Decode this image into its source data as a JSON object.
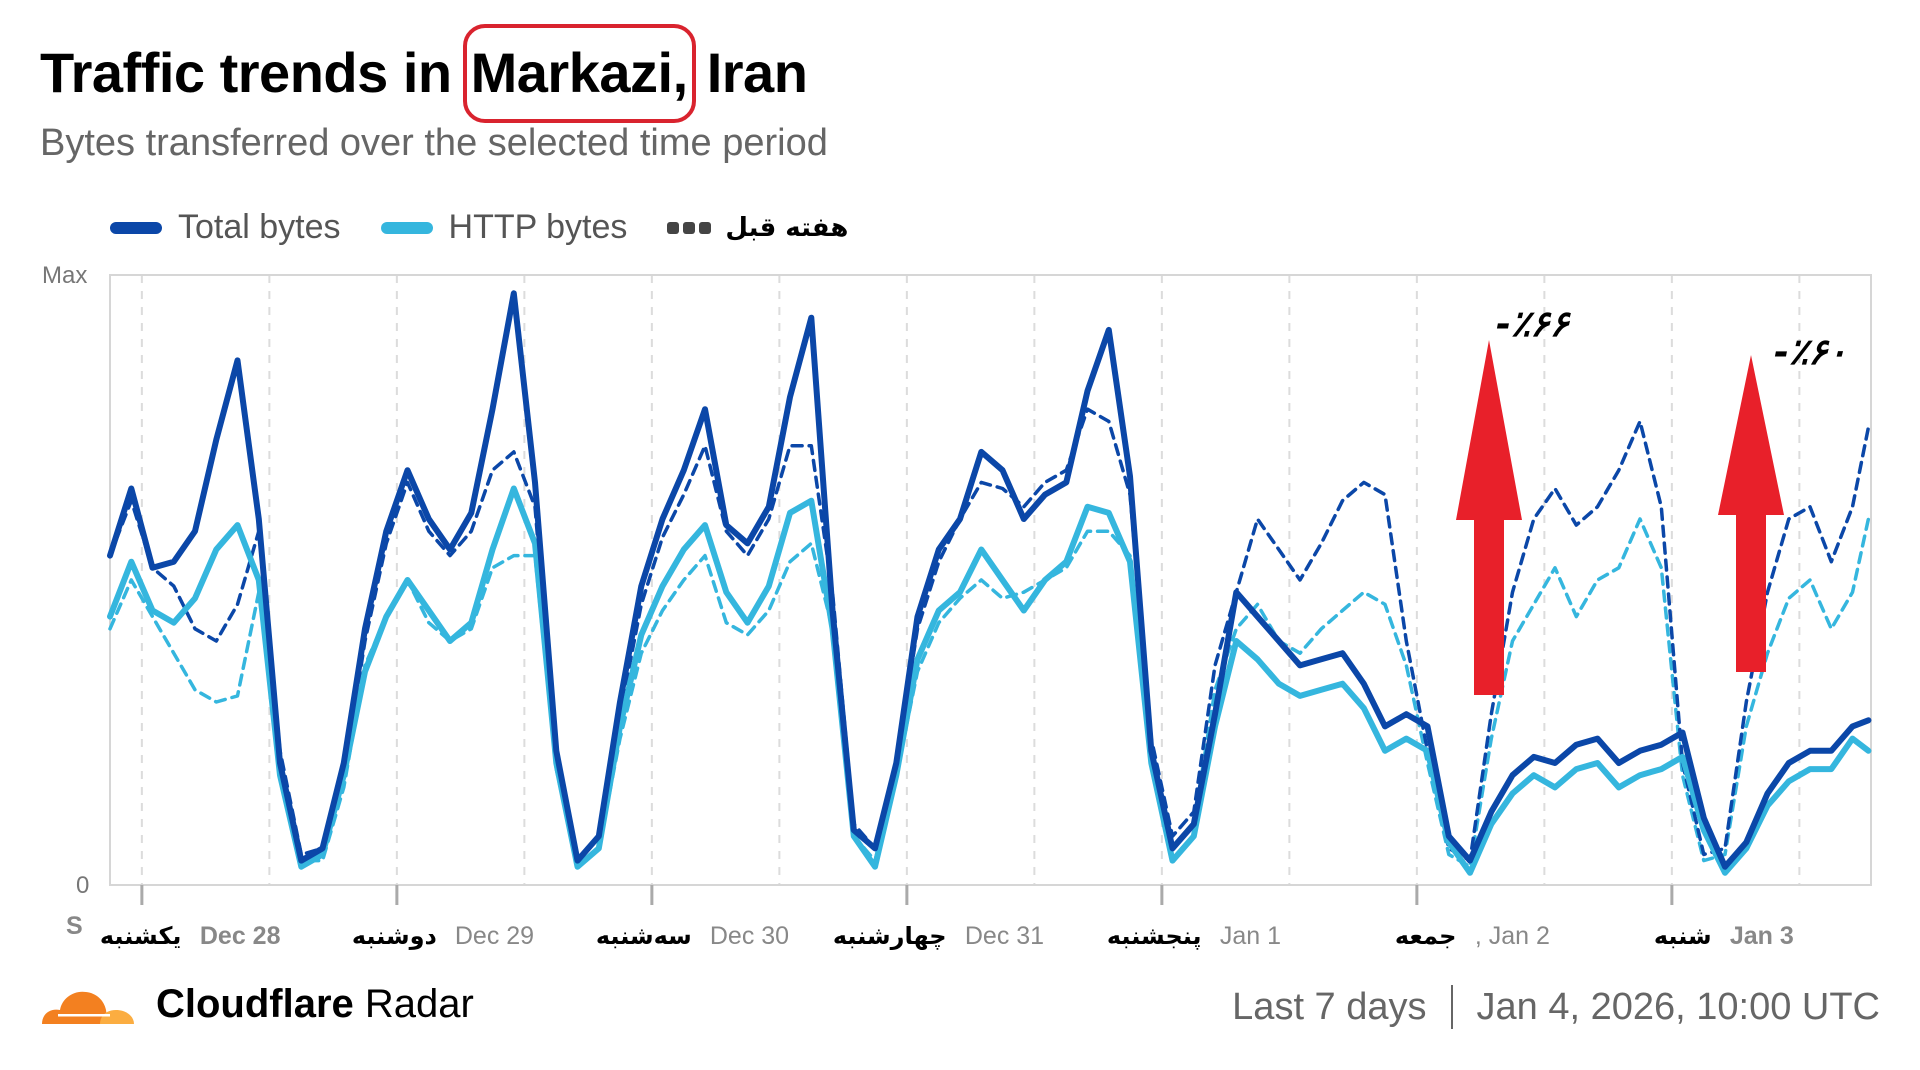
{
  "header": {
    "title_prefix": "Traffic trends in ",
    "title_highlight": "Markazi,",
    "title_suffix": " Iran",
    "subtitle": "Bytes transferred over the selected time period"
  },
  "legend": [
    {
      "label": "Total bytes",
      "color": "#0b47a8",
      "style": "solid"
    },
    {
      "label": "HTTP bytes",
      "color": "#35b6de",
      "style": "solid"
    },
    {
      "label": "هفته قبل",
      "color": "#444444",
      "style": "dashed"
    }
  ],
  "axes": {
    "y_max_label": "Max",
    "y_min_label": "0",
    "x_start_label": "S"
  },
  "x_labels": [
    {
      "fa": "یکشنبه",
      "en": "Dec 28"
    },
    {
      "fa": "دوشنبه",
      "en": "Dec 29"
    },
    {
      "fa": "سه‌شنبه",
      "en": "Dec 30"
    },
    {
      "fa": "چهارشنبه",
      "en": "Dec 31"
    },
    {
      "fa": "پنجشنبه",
      "en": "Jan 1"
    },
    {
      "fa": "جمعه",
      "en": ", Jan 2"
    },
    {
      "fa": "شنبه",
      "en": "Jan 3"
    }
  ],
  "annotations": [
    {
      "text": "-٪۶۶",
      "target": "Jan 2 peak"
    },
    {
      "text": "-٪۶۰",
      "target": "Jan 3 peak"
    }
  ],
  "footer": {
    "brand_bold": "Cloudflare",
    "brand_light": " Radar",
    "range": "Last 7 days",
    "timestamp": "Jan 4, 2026, 10:00 UTC"
  },
  "colors": {
    "total": "#0b47a8",
    "http": "#35b6de",
    "prev_total": "#0b47a8",
    "prev_http": "#35b6de",
    "arrow": "#e8202a",
    "grid": "#dddddd",
    "axis": "#cccccc"
  },
  "chart_data": {
    "type": "line",
    "title": "Traffic trends in Markazi, Iran",
    "subtitle": "Bytes transferred over the selected time period",
    "xlabel": "",
    "ylabel": "",
    "ylim": [
      0,
      100
    ],
    "y_tick_labels": [
      "0",
      "Max"
    ],
    "x_unit": "hours since Dec 27 ~21:00 UTC (tick every 24h, first tick at x=3)",
    "x_ticks": [
      3,
      27,
      51,
      75,
      99,
      123,
      147
    ],
    "x_tick_labels": [
      "Dec 28",
      "Dec 29",
      "Dec 30",
      "Dec 31",
      "Jan 1",
      "Jan 2",
      "Jan 3"
    ],
    "legend_position": "top-left",
    "grid": "vertical dashed every 12h",
    "x": [
      0,
      2,
      4,
      6,
      8,
      10,
      12,
      14,
      16,
      18,
      20,
      22,
      24,
      26,
      28,
      30,
      32,
      34,
      36,
      38,
      40,
      42,
      44,
      46,
      48,
      50,
      52,
      54,
      56,
      58,
      60,
      62,
      64,
      66,
      68,
      70,
      72,
      74,
      76,
      78,
      80,
      82,
      84,
      86,
      88,
      90,
      92,
      94,
      96,
      98,
      100,
      102,
      104,
      106,
      108,
      110,
      112,
      114,
      116,
      118,
      120,
      122,
      124,
      126,
      128,
      130,
      132,
      134,
      136,
      138,
      140,
      142,
      144,
      146,
      148,
      150,
      152,
      154,
      156,
      158,
      160,
      162,
      164,
      165.5
    ],
    "series": [
      {
        "name": "Total bytes",
        "values": [
          54,
          65,
          52,
          53,
          58,
          73,
          86,
          60,
          20,
          4,
          6,
          20,
          42,
          58,
          68,
          60,
          55,
          61,
          78,
          97,
          66,
          22,
          4,
          8,
          30,
          49,
          60,
          68,
          78,
          59,
          56,
          62,
          80,
          93,
          45,
          9,
          6,
          20,
          44,
          55,
          60,
          71,
          68,
          60,
          64,
          66,
          81,
          91,
          67,
          22,
          6,
          10,
          28,
          48,
          44,
          40,
          36,
          37,
          38,
          33,
          26,
          28,
          26,
          8,
          4,
          12,
          18,
          21,
          20,
          23,
          24,
          20,
          22,
          23,
          25,
          11,
          3,
          7,
          15,
          20,
          22,
          22,
          26,
          27
        ]
      },
      {
        "name": "HTTP bytes",
        "values": [
          44,
          53,
          45,
          43,
          47,
          55,
          59,
          50,
          18,
          3,
          5,
          18,
          35,
          44,
          50,
          45,
          40,
          43,
          55,
          65,
          56,
          20,
          3,
          6,
          26,
          41,
          49,
          55,
          59,
          48,
          43,
          49,
          61,
          63,
          42,
          8,
          3,
          18,
          37,
          45,
          48,
          55,
          50,
          45,
          50,
          53,
          62,
          61,
          53,
          20,
          4,
          8,
          26,
          40,
          37,
          33,
          31,
          32,
          33,
          29,
          22,
          24,
          22,
          7,
          2,
          10,
          15,
          18,
          16,
          19,
          20,
          16,
          18,
          19,
          21,
          9,
          2,
          6,
          13,
          17,
          19,
          19,
          24,
          22
        ]
      },
      {
        "name": "Total bytes (previous week)",
        "values": [
          54,
          63,
          52,
          49,
          42,
          40,
          46,
          58,
          22,
          5,
          6,
          18,
          40,
          56,
          66,
          58,
          54,
          58,
          68,
          71,
          62,
          20,
          4,
          8,
          28,
          46,
          57,
          64,
          72,
          58,
          54,
          60,
          72,
          72,
          48,
          10,
          6,
          20,
          42,
          53,
          60,
          66,
          65,
          62,
          66,
          68,
          78,
          76,
          64,
          24,
          8,
          12,
          36,
          48,
          60,
          55,
          50,
          56,
          63,
          66,
          64,
          40,
          22,
          6,
          4,
          28,
          48,
          60,
          65,
          59,
          62,
          68,
          76,
          62,
          20,
          5,
          6,
          30,
          48,
          60,
          62,
          53,
          62,
          75
        ]
      },
      {
        "name": "HTTP bytes (previous week)",
        "values": [
          42,
          50,
          44,
          38,
          32,
          30,
          31,
          48,
          20,
          4,
          4,
          16,
          36,
          44,
          50,
          43,
          40,
          42,
          52,
          54,
          54,
          19,
          3,
          6,
          24,
          38,
          45,
          50,
          54,
          43,
          41,
          45,
          53,
          56,
          42,
          8,
          4,
          18,
          35,
          43,
          47,
          50,
          47,
          48,
          50,
          52,
          58,
          58,
          54,
          22,
          6,
          10,
          32,
          42,
          46,
          40,
          38,
          42,
          45,
          48,
          46,
          36,
          20,
          5,
          3,
          24,
          40,
          46,
          52,
          44,
          50,
          52,
          60,
          52,
          18,
          4,
          5,
          26,
          38,
          47,
          50,
          42,
          48,
          60
        ]
      }
    ],
    "annotations": [
      {
        "text": "-٪۶۶",
        "x": 133,
        "note": "Jan 2 peak, total vs previous week"
      },
      {
        "text": "-٪۶۰",
        "x": 157,
        "note": "Jan 3 peak, total vs previous week"
      }
    ]
  }
}
